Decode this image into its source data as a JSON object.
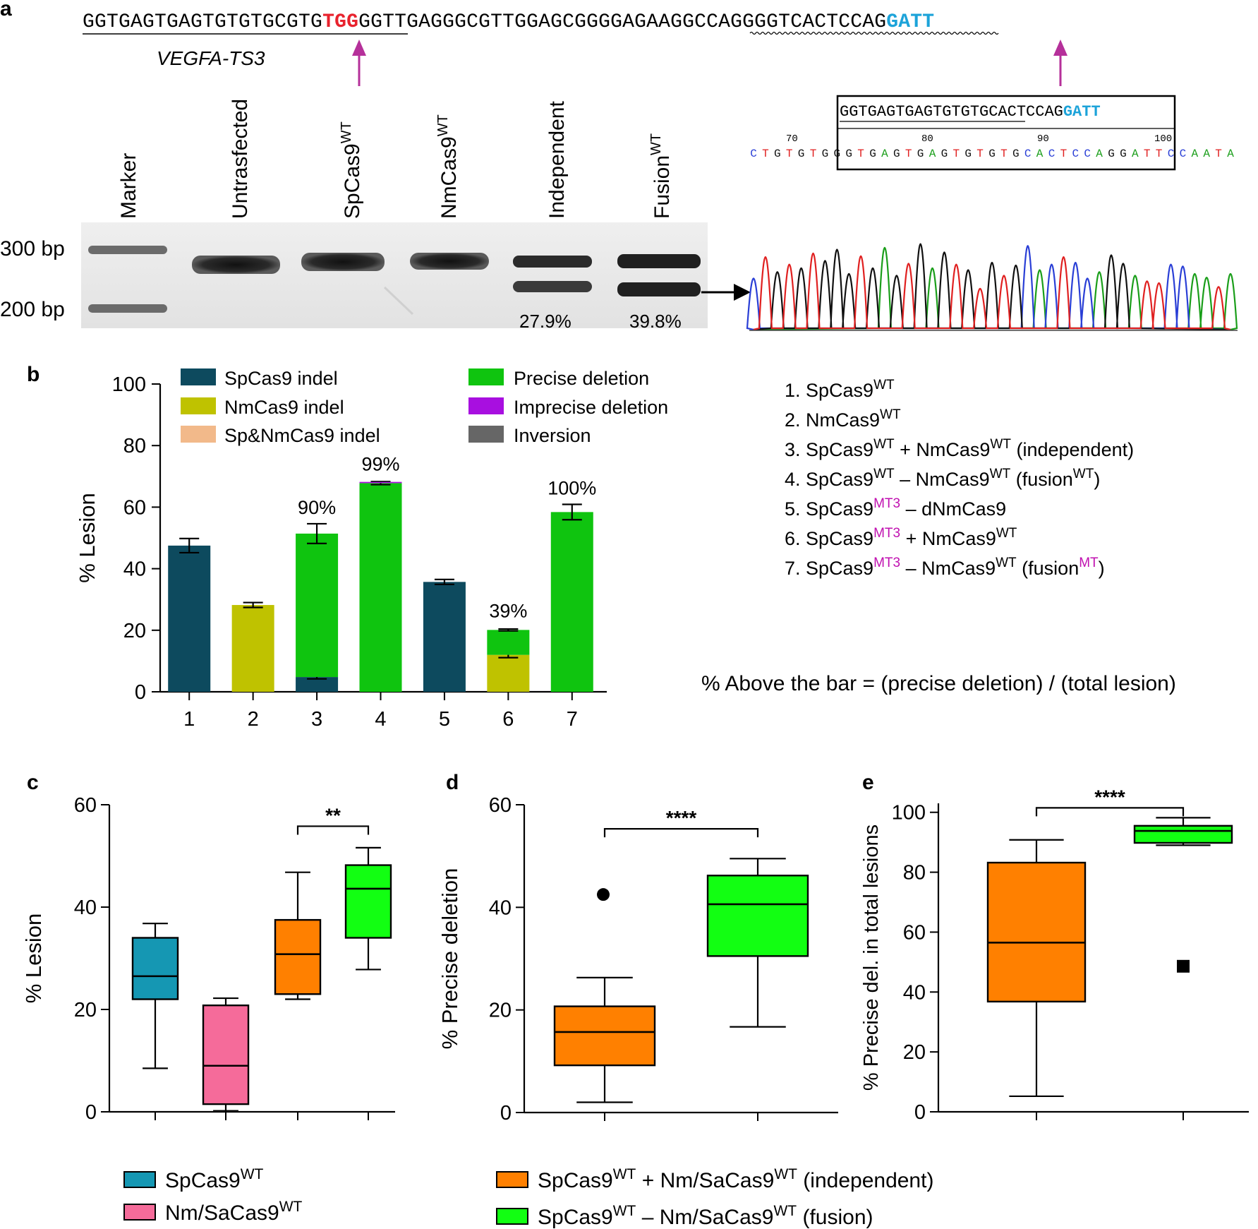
{
  "panel_a": {
    "label": "a",
    "sequence": {
      "part1": "GGTGAGTGAGTGTGTGCGTG",
      "pam1": "TGG",
      "part2": "GGTTGAGGGCGTTGGAGC",
      "part3": "GGGGAGAAGGCCAGGGGTCACTCCAG",
      "pam2": "GATT",
      "target_label": "VEGFA-TS3",
      "pam1_color": "#e8222d",
      "pam2_color": "#1ca3d9"
    },
    "lanes": [
      "Marker",
      "Untrasfected",
      "SpCas9",
      "NmCas9",
      "Independent",
      "Fusion"
    ],
    "lane_superscript": "WT",
    "size_markers": [
      "300 bp",
      "200 bp"
    ],
    "lane_percents": [
      "27.9%",
      "39.8%"
    ],
    "junction_box_seq": "GGTGAGTGAGTGTGTGCACTCCAG",
    "junction_box_pam": "GATT",
    "trace_positions": [
      "70",
      "80",
      "90",
      "100"
    ],
    "trace_bases": "CTGTGTGGGTGAGTGAGTGTGTGCACTCCAGGATTCCAATA",
    "base_colors": {
      "A": "#1a9e1a",
      "C": "#2a3fd6",
      "G": "#111111",
      "T": "#e02020"
    }
  },
  "panel_b": {
    "label": "b",
    "legend": [
      {
        "name": "SpCas9 indel",
        "color": "#0d4a5e"
      },
      {
        "name": "NmCas9 indel",
        "color": "#bfc200"
      },
      {
        "name": "Sp&NmCas9 indel",
        "color": "#f2b98a"
      },
      {
        "name": "Precise deletion",
        "color": "#0fc40f"
      },
      {
        "name": "Imprecise deletion",
        "color": "#a80fe0"
      },
      {
        "name": "Inversion",
        "color": "#666666"
      }
    ],
    "conditions": [
      {
        "num": "1.",
        "a": "SpCas9",
        "a_sup": "WT",
        "a_sup_color": "#000000",
        "b": "",
        "b_sup": "",
        "c": "",
        "c_sup": "",
        "d": ""
      },
      {
        "num": "2.",
        "a": "NmCas9",
        "a_sup": "WT",
        "a_sup_color": "#000000",
        "b": "",
        "b_sup": "",
        "c": "",
        "c_sup": "",
        "d": ""
      },
      {
        "num": "3.",
        "a": "SpCas9",
        "a_sup": "WT",
        "a_sup_color": "#000000",
        "b": " + NmCas9",
        "b_sup": "WT",
        "c": " (independent)",
        "c_sup": "",
        "d": ""
      },
      {
        "num": "4.",
        "a": "SpCas9",
        "a_sup": "WT",
        "a_sup_color": "#000000",
        "b": " – NmCas9",
        "b_sup": "WT",
        "c": " (fusion",
        "c_sup": "WT",
        "c_sup_color": "#000000",
        "d": ")"
      },
      {
        "num": "5.",
        "a": "SpCas9",
        "a_sup": "MT3",
        "a_sup_color": "#c010b0",
        "b": " – dNmCas9",
        "b_sup": "",
        "c": "",
        "c_sup": "",
        "d": ""
      },
      {
        "num": "6.",
        "a": "SpCas9",
        "a_sup": "MT3",
        "a_sup_color": "#c010b0",
        "b": " + NmCas9",
        "b_sup": "WT",
        "c": "",
        "c_sup": "",
        "d": ""
      },
      {
        "num": "7.",
        "a": "SpCas9",
        "a_sup": "MT3",
        "a_sup_color": "#c010b0",
        "b": " – NmCas9",
        "b_sup": "WT",
        "c": " (fusion",
        "c_sup": "MT",
        "c_sup_color": "#c010b0",
        "d": ")"
      }
    ],
    "note": "% Above the bar = (precise deletion) / (total lesion)"
  },
  "chart_data": [
    {
      "id": "b",
      "type": "bar",
      "stacked": true,
      "ylabel": "% Lesion",
      "ylim": [
        0,
        100
      ],
      "yticks": [
        0,
        20,
        40,
        60,
        80,
        100
      ],
      "categories": [
        "1",
        "2",
        "3",
        "4",
        "5",
        "6",
        "7"
      ],
      "series": [
        {
          "name": "SpCas9 indel",
          "color": "#0d4a5e",
          "values": [
            47.5,
            0,
            4.8,
            0,
            35.7,
            0,
            0
          ],
          "errors": [
            2.3,
            0,
            0.6,
            0,
            0.8,
            0,
            0
          ]
        },
        {
          "name": "NmCas9 indel",
          "color": "#bfc200",
          "values": [
            0,
            28.2,
            0,
            0,
            0,
            12.0,
            0
          ],
          "errors": [
            0,
            0.8,
            0,
            0,
            0,
            0.9,
            0
          ]
        },
        {
          "name": "Precise deletion",
          "color": "#0fc40f",
          "values": [
            0,
            0,
            46.6,
            67.8,
            0,
            8.1,
            58.4
          ],
          "errors": [
            0,
            0,
            3.2,
            0.5,
            0,
            0.3,
            2.5
          ]
        },
        {
          "name": "Imprecise deletion",
          "color": "#a80fe0",
          "values": [
            0,
            0,
            0,
            0.4,
            0,
            0,
            0
          ],
          "errors": [
            0,
            0,
            0,
            0,
            0,
            0,
            0
          ]
        }
      ],
      "bar_annotations": [
        "",
        "",
        "90%",
        "99%",
        "",
        "39%",
        "100%"
      ]
    },
    {
      "id": "c",
      "type": "box",
      "ylabel": "% Lesion",
      "ylim": [
        0,
        60
      ],
      "yticks": [
        0,
        20,
        40,
        60
      ],
      "boxes": [
        {
          "name": "SpCas9 WT",
          "color": "#1597b3",
          "min": 8.5,
          "q1": 22,
          "median": 26.5,
          "q3": 34,
          "max": 36.8
        },
        {
          "name": "Nm/SaCas9 WT",
          "color": "#f56b9a",
          "min": 0.2,
          "q1": 1.5,
          "median": 9,
          "q3": 20.8,
          "max": 22.2
        },
        {
          "name": "independent",
          "color": "#ff8000",
          "min": 22,
          "q1": 23,
          "median": 30.8,
          "q3": 37.5,
          "max": 46.8
        },
        {
          "name": "fusion",
          "color": "#12ff12",
          "min": 27.8,
          "q1": 34,
          "median": 43.6,
          "q3": 48.2,
          "max": 51.6
        }
      ],
      "significance": {
        "between": [
          2,
          3
        ],
        "label": "**",
        "level": 55.8
      }
    },
    {
      "id": "d",
      "type": "box",
      "ylabel": "% Precise deletion",
      "ylim": [
        0,
        60
      ],
      "yticks": [
        0,
        20,
        40,
        60
      ],
      "boxes": [
        {
          "name": "independent",
          "color": "#ff8000",
          "min": 2,
          "q1": 9.2,
          "median": 15.7,
          "q3": 20.7,
          "max": 26.3,
          "outliers": [
            42.5
          ],
          "outlier_shape": "circle"
        },
        {
          "name": "fusion",
          "color": "#12ff12",
          "min": 16.7,
          "q1": 30.5,
          "median": 40.6,
          "q3": 46.2,
          "max": 49.5
        }
      ],
      "significance": {
        "between": [
          0,
          1
        ],
        "label": "****",
        "level": 55.3
      }
    },
    {
      "id": "e",
      "type": "box",
      "ylabel": "% Precise del. in total lesions",
      "ylim": [
        0,
        103
      ],
      "yticks": [
        0,
        20,
        40,
        60,
        80,
        100
      ],
      "boxes": [
        {
          "name": "independent",
          "color": "#ff8000",
          "min": 5.2,
          "q1": 36.8,
          "median": 56.5,
          "q3": 83.2,
          "max": 90.8
        },
        {
          "name": "fusion",
          "color": "#12ff12",
          "min": 89,
          "q1": 89.8,
          "median": 93.8,
          "q3": 95.5,
          "max": 98.2,
          "outliers": [
            48.6
          ],
          "outlier_shape": "square"
        }
      ],
      "significance": {
        "between": [
          0,
          1
        ],
        "label": "****",
        "level": 101.5
      }
    }
  ],
  "panel_c": {
    "label": "c"
  },
  "panel_d": {
    "label": "d"
  },
  "panel_e": {
    "label": "e"
  },
  "bottom_legend": [
    {
      "text": "SpCas9",
      "sup": "WT",
      "tail": "",
      "color": "#1597b3"
    },
    {
      "text": "Nm/SaCas9",
      "sup": "WT",
      "tail": "",
      "color": "#f56b9a"
    },
    {
      "text": "SpCas9",
      "sup": "WT",
      "mid": " + Nm/SaCas9",
      "sup2": "WT",
      "tail": " (independent)",
      "color": "#ff8000"
    },
    {
      "text": "SpCas9",
      "sup": "WT",
      "mid": " – Nm/SaCas9",
      "sup2": "WT",
      "tail": " (fusion)",
      "color": "#12ff12"
    }
  ]
}
